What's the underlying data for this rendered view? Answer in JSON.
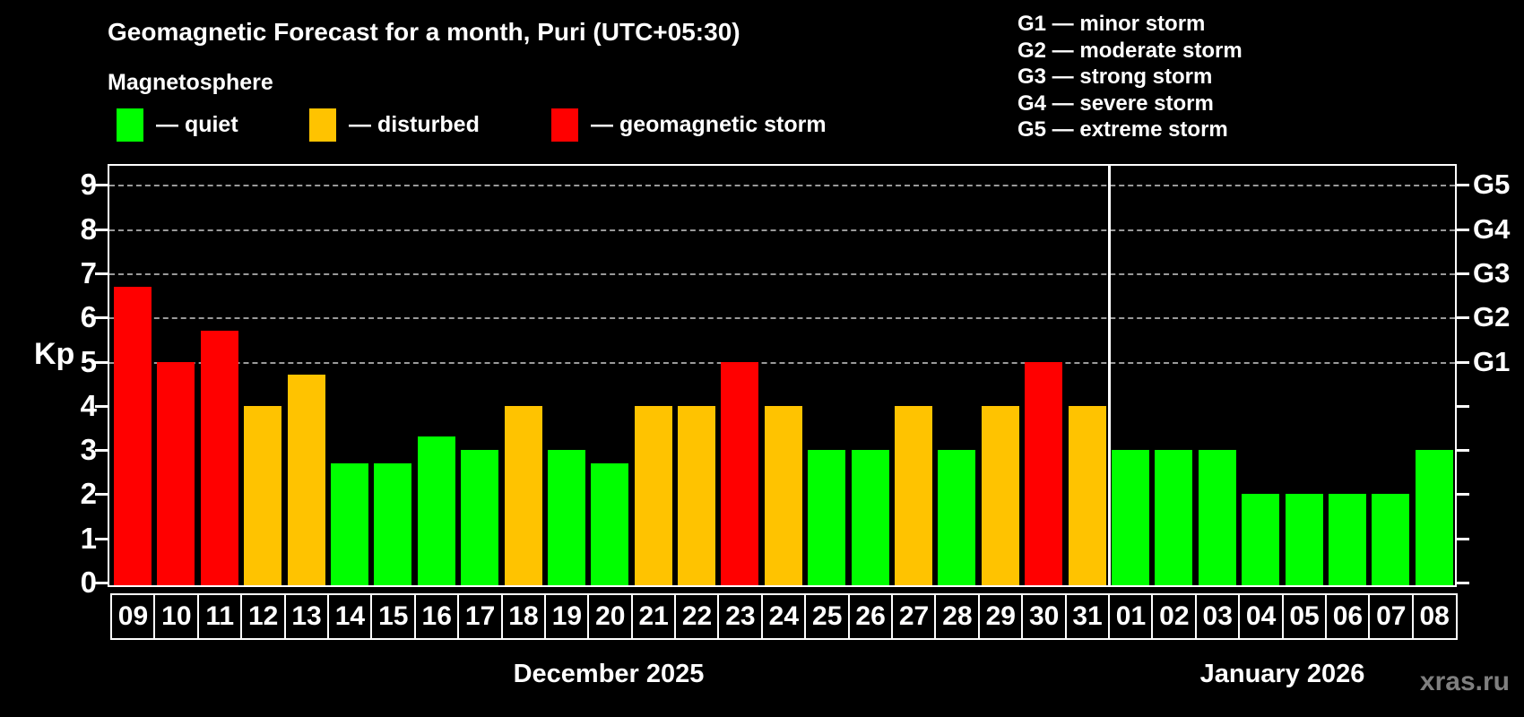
{
  "header": {
    "title": "Geomagnetic Forecast for a month, Puri (UTC+05:30)",
    "subtitle": "Magnetosphere"
  },
  "legend": {
    "items": [
      {
        "label": "— quiet",
        "status": "quiet",
        "color": "#00ff00"
      },
      {
        "label": "— disturbed",
        "status": "disturbed",
        "color": "#ffc300"
      },
      {
        "label": "— geomagnetic storm",
        "status": "storm",
        "color": "#ff0000"
      }
    ]
  },
  "g_legend": {
    "items": [
      "G1 — minor storm",
      "G2 — moderate storm",
      "G3 — strong storm",
      "G4 — severe storm",
      "G5 — extreme storm"
    ]
  },
  "chart_data": {
    "type": "bar",
    "title": "Geomagnetic Forecast for a month, Puri (UTC+05:30)",
    "ylabel": "Kp",
    "ylim": [
      0,
      9.5
    ],
    "yticks": [
      0,
      1,
      2,
      3,
      4,
      5,
      6,
      7,
      8,
      9
    ],
    "gridlines_at": [
      5,
      6,
      7,
      8,
      9
    ],
    "grid": "dashed-horizontal",
    "right_axis": [
      {
        "label": "G1",
        "kp": 5
      },
      {
        "label": "G2",
        "kp": 6
      },
      {
        "label": "G3",
        "kp": 7
      },
      {
        "label": "G4",
        "kp": 8
      },
      {
        "label": "G5",
        "kp": 9
      }
    ],
    "status_colors": {
      "quiet": "#00ff00",
      "disturbed": "#ffc300",
      "storm": "#ff0000"
    },
    "months": [
      {
        "label": "December 2025",
        "count": 23
      },
      {
        "label": "January 2026",
        "count": 8
      }
    ],
    "bars": [
      {
        "day": "09",
        "month": "December 2025",
        "value": 6.7,
        "status": "storm"
      },
      {
        "day": "10",
        "month": "December 2025",
        "value": 5.0,
        "status": "storm"
      },
      {
        "day": "11",
        "month": "December 2025",
        "value": 5.7,
        "status": "storm"
      },
      {
        "day": "12",
        "month": "December 2025",
        "value": 4.0,
        "status": "disturbed"
      },
      {
        "day": "13",
        "month": "December 2025",
        "value": 4.7,
        "status": "disturbed"
      },
      {
        "day": "14",
        "month": "December 2025",
        "value": 2.7,
        "status": "quiet"
      },
      {
        "day": "15",
        "month": "December 2025",
        "value": 2.7,
        "status": "quiet"
      },
      {
        "day": "16",
        "month": "December 2025",
        "value": 3.3,
        "status": "quiet"
      },
      {
        "day": "17",
        "month": "December 2025",
        "value": 3.0,
        "status": "quiet"
      },
      {
        "day": "18",
        "month": "December 2025",
        "value": 4.0,
        "status": "disturbed"
      },
      {
        "day": "19",
        "month": "December 2025",
        "value": 3.0,
        "status": "quiet"
      },
      {
        "day": "20",
        "month": "December 2025",
        "value": 2.7,
        "status": "quiet"
      },
      {
        "day": "21",
        "month": "December 2025",
        "value": 4.0,
        "status": "disturbed"
      },
      {
        "day": "22",
        "month": "December 2025",
        "value": 4.0,
        "status": "disturbed"
      },
      {
        "day": "23",
        "month": "December 2025",
        "value": 5.0,
        "status": "storm"
      },
      {
        "day": "24",
        "month": "December 2025",
        "value": 4.0,
        "status": "disturbed"
      },
      {
        "day": "25",
        "month": "December 2025",
        "value": 3.0,
        "status": "quiet"
      },
      {
        "day": "26",
        "month": "December 2025",
        "value": 3.0,
        "status": "quiet"
      },
      {
        "day": "27",
        "month": "December 2025",
        "value": 4.0,
        "status": "disturbed"
      },
      {
        "day": "28",
        "month": "December 2025",
        "value": 3.0,
        "status": "quiet"
      },
      {
        "day": "29",
        "month": "December 2025",
        "value": 4.0,
        "status": "disturbed"
      },
      {
        "day": "30",
        "month": "December 2025",
        "value": 5.0,
        "status": "storm"
      },
      {
        "day": "31",
        "month": "December 2025",
        "value": 4.0,
        "status": "disturbed"
      },
      {
        "day": "01",
        "month": "January 2026",
        "value": 3.0,
        "status": "quiet"
      },
      {
        "day": "02",
        "month": "January 2026",
        "value": 3.0,
        "status": "quiet"
      },
      {
        "day": "03",
        "month": "January 2026",
        "value": 3.0,
        "status": "quiet"
      },
      {
        "day": "04",
        "month": "January 2026",
        "value": 2.0,
        "status": "quiet"
      },
      {
        "day": "05",
        "month": "January 2026",
        "value": 2.0,
        "status": "quiet"
      },
      {
        "day": "06",
        "month": "January 2026",
        "value": 2.0,
        "status": "quiet"
      },
      {
        "day": "07",
        "month": "January 2026",
        "value": 2.0,
        "status": "quiet"
      },
      {
        "day": "08",
        "month": "January 2026",
        "value": 3.0,
        "status": "quiet"
      }
    ]
  },
  "watermark": "xras.ru"
}
